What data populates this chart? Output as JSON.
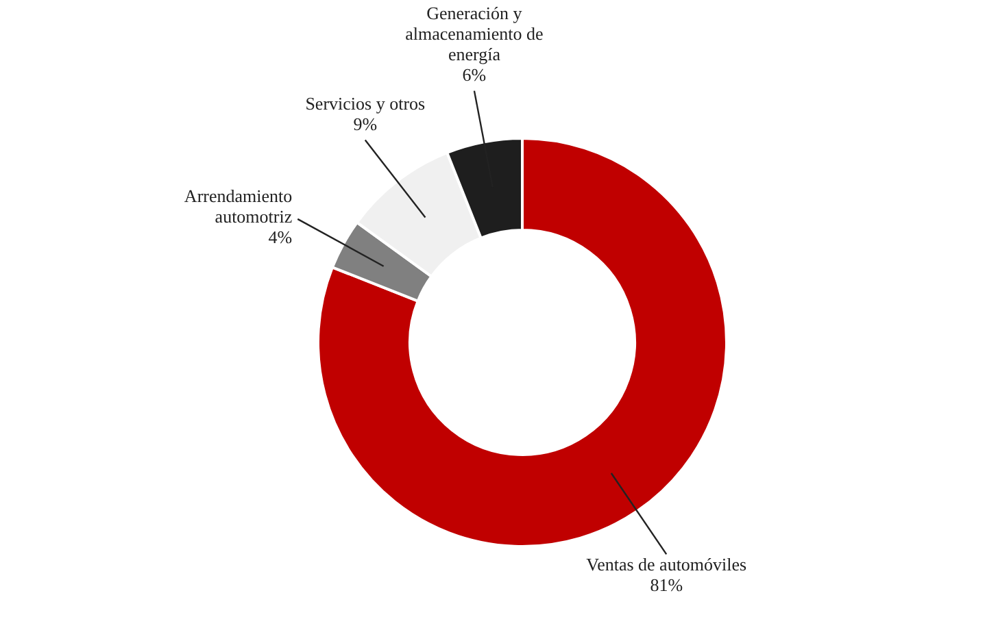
{
  "chart_data": {
    "type": "donut",
    "categories": [
      "Ventas de automóviles",
      "Arrendamiento automotriz",
      "Servicios y otros",
      "Generación y almacenamiento de energía"
    ],
    "values": [
      81,
      4,
      9,
      6
    ],
    "value_labels": [
      "81%",
      "4%",
      "9%",
      "6%"
    ],
    "colors": [
      "#c00000",
      "#808080",
      "#f0f0f0",
      "#1e1e1e"
    ],
    "legend": false
  }
}
